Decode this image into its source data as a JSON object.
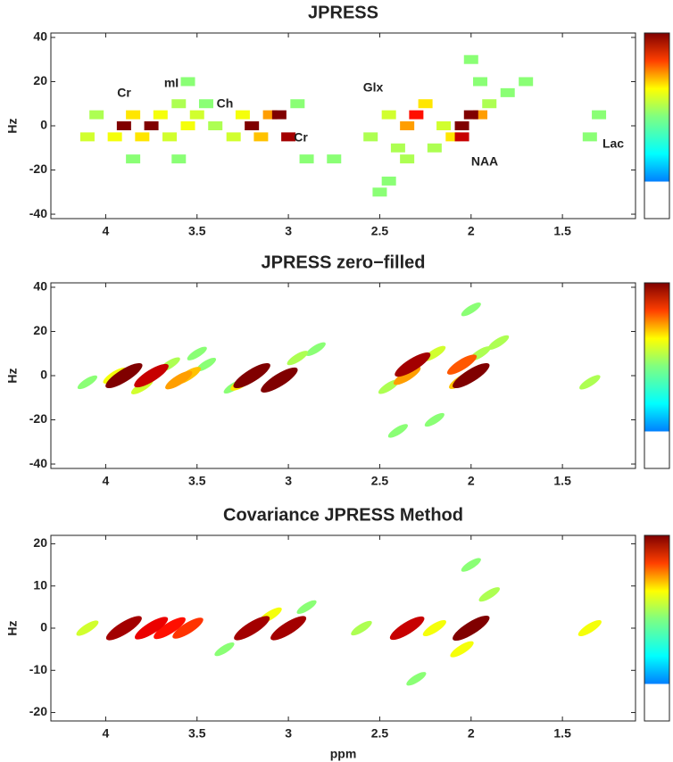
{
  "chart_data": [
    {
      "type": "heatmap",
      "title": "JPRESS",
      "ylabel": "Hz",
      "colormap": "jet",
      "xlim": [
        4.3,
        1.1
      ],
      "xticks": [
        4,
        3.5,
        3,
        2.5,
        2,
        1.5
      ],
      "ylim": [
        -42,
        42
      ],
      "yticks": [
        -40,
        -20,
        0,
        20,
        40
      ],
      "annotations": [
        "Cr",
        "mI",
        "Ch",
        "Cr",
        "Glx",
        "NAA",
        "Lac"
      ],
      "x": [
        4.05,
        4.1,
        3.95,
        3.85,
        3.8,
        3.7,
        3.65,
        3.6,
        3.55,
        3.55,
        3.5,
        3.45,
        3.85,
        3.6,
        3.4,
        3.9,
        3.75,
        3.3,
        3.25,
        3.15,
        3.1,
        2.95,
        2.9,
        2.75,
        3.2,
        3.05,
        3.0,
        2.55,
        2.45,
        2.4,
        2.35,
        2.45,
        2.5,
        2.25,
        2.2,
        2.35,
        2.3,
        2.15,
        2.1,
        1.95,
        1.9,
        2.0,
        1.95,
        1.8,
        1.7,
        1.35,
        1.3,
        2.05,
        2.0,
        2.05
      ],
      "y": [
        5,
        -5,
        -5,
        5,
        -5,
        5,
        -5,
        10,
        20,
        0,
        5,
        10,
        -15,
        -15,
        0,
        0,
        0,
        -5,
        5,
        -5,
        5,
        10,
        -15,
        -15,
        0,
        5,
        -5,
        -5,
        5,
        -10,
        -15,
        -25,
        -30,
        10,
        -10,
        0,
        5,
        0,
        -5,
        5,
        10,
        30,
        20,
        15,
        20,
        -5,
        5,
        0,
        5,
        -5
      ],
      "values": [
        0.35,
        0.4,
        0.45,
        0.5,
        0.5,
        0.45,
        0.4,
        0.35,
        0.3,
        0.45,
        0.4,
        0.3,
        0.3,
        0.3,
        0.35,
        1,
        1,
        0.4,
        0.45,
        0.55,
        0.6,
        0.3,
        0.3,
        0.3,
        1,
        1,
        0.95,
        0.35,
        0.4,
        0.35,
        0.35,
        0.3,
        0.3,
        0.5,
        0.35,
        0.6,
        0.8,
        0.4,
        0.5,
        0.6,
        0.35,
        0.3,
        0.3,
        0.3,
        0.3,
        0.3,
        0.3,
        1,
        1,
        0.9
      ]
    },
    {
      "type": "contour",
      "title": "JPRESS zero−filled",
      "ylabel": "Hz",
      "colormap": "jet",
      "xlim": [
        4.3,
        1.1
      ],
      "xticks": [
        4,
        3.5,
        3,
        2.5,
        2,
        1.5
      ],
      "ylim": [
        -42,
        42
      ],
      "yticks": [
        -40,
        -20,
        0,
        20,
        40
      ],
      "x": [
        4.1,
        3.5,
        3.45,
        3.3,
        2.85,
        2.2,
        2.4,
        2.0,
        3.95,
        3.8,
        3.65,
        2.95,
        2.45,
        2.2,
        1.95,
        1.85,
        1.35,
        3.25,
        3.55,
        3.6,
        2.05,
        2.35,
        2.05,
        3.9,
        3.75,
        3.2,
        3.05,
        2.32,
        2.0
      ],
      "y": [
        -3,
        10,
        5,
        -5,
        12,
        -20,
        -25,
        30,
        0,
        -5,
        5,
        8,
        -5,
        10,
        10,
        15,
        -3,
        -3,
        0,
        -2,
        -2,
        0,
        5,
        0,
        0,
        0,
        -2,
        5,
        0
      ],
      "values": [
        0.3,
        0.3,
        0.3,
        0.3,
        0.3,
        0.3,
        0.3,
        0.3,
        0.45,
        0.4,
        0.35,
        0.35,
        0.35,
        0.4,
        0.35,
        0.35,
        0.35,
        0.5,
        0.55,
        0.6,
        0.55,
        0.6,
        0.7,
        1,
        0.9,
        1,
        1,
        0.95,
        1
      ]
    },
    {
      "type": "contour",
      "title": "Covariance JPRESS Method",
      "ylabel": "Hz",
      "xlabel": "ppm",
      "colormap": "jet",
      "xlim": [
        4.3,
        1.1
      ],
      "xticks": [
        4,
        3.5,
        3,
        2.5,
        2,
        1.5
      ],
      "ylim": [
        -22,
        22
      ],
      "yticks": [
        -20,
        -10,
        0,
        10,
        20
      ],
      "x": [
        3.35,
        2.9,
        2.6,
        2.3,
        2.0,
        1.9,
        4.1,
        3.1,
        2.2,
        2.05,
        1.35,
        3.55,
        3.65,
        3.75,
        3.9,
        3.2,
        3.0,
        2.35,
        2.0
      ],
      "y": [
        -5,
        5,
        0,
        -12,
        15,
        8,
        0,
        3,
        0,
        -5,
        0,
        0,
        0,
        0,
        0,
        0,
        0,
        0,
        0
      ],
      "values": [
        0.3,
        0.3,
        0.35,
        0.3,
        0.3,
        0.35,
        0.4,
        0.45,
        0.45,
        0.45,
        0.45,
        0.75,
        0.8,
        0.85,
        0.95,
        0.95,
        0.95,
        0.9,
        1
      ]
    }
  ]
}
